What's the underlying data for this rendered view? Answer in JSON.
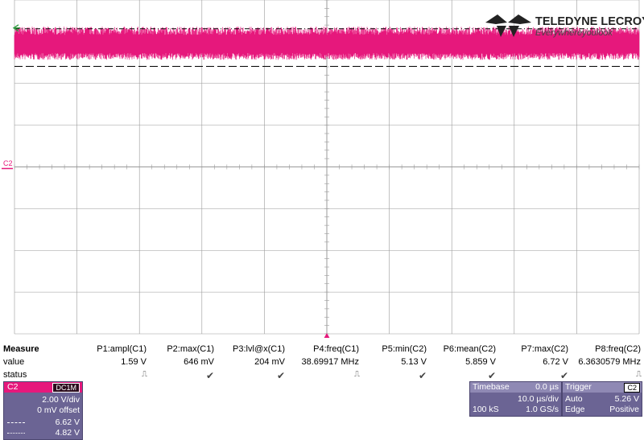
{
  "brand": {
    "name": "TELEDYNE LECROY",
    "tagline": "Everywhereyoulook",
    "colors": {
      "trace": "#e6187c",
      "grid": "#9a9a9a",
      "marker_green": "#2e9b3e"
    }
  },
  "screen": {
    "channel_marker": "C2",
    "trace_mean_v": 5.859,
    "trace_min_v": 5.13,
    "trace_max_v": 6.72,
    "cursor_upper_v": 6.62,
    "cursor_lower_v": 4.82,
    "volts_per_div": 2.0
  },
  "measure": {
    "title": "Measure",
    "row_labels": [
      "value",
      "status"
    ],
    "params": [
      {
        "name": "P1:ampl(C1)",
        "value": "1.59 V",
        "status": "pulse"
      },
      {
        "name": "P2:max(C1)",
        "value": "646 mV",
        "status": "check"
      },
      {
        "name": "P3:lvl@x(C1)",
        "value": "204 mV",
        "status": "check"
      },
      {
        "name": "P4:freq(C1)",
        "value": "38.69917 MHz",
        "status": "pulse"
      },
      {
        "name": "P5:min(C2)",
        "value": "5.13 V",
        "status": "check"
      },
      {
        "name": "P6:mean(C2)",
        "value": "5.859 V",
        "status": "check"
      },
      {
        "name": "P7:max(C2)",
        "value": "6.72 V",
        "status": "check"
      },
      {
        "name": "P8:freq(C2)",
        "value": "6.3630579 MHz",
        "status": "pulse"
      }
    ]
  },
  "channel_panel": {
    "label": "C2",
    "coupling": "DC1M",
    "scale": "2.00 V/div",
    "offset": "0 mV offset",
    "cursor1": "6.62 V",
    "cursor2": "4.82 V"
  },
  "timebase_panel": {
    "label": "Timebase",
    "delay": "0.0 µs",
    "scale": "10.0 µs/div",
    "samples": "100 kS",
    "rate": "1.0 GS/s"
  },
  "trigger_panel": {
    "label": "Trigger",
    "source_badge": "C2",
    "mode": "Auto",
    "level": "5.26 V",
    "type": "Edge",
    "slope": "Positive"
  },
  "status_glyphs": {
    "check": "✔",
    "pulse": "⎍"
  }
}
